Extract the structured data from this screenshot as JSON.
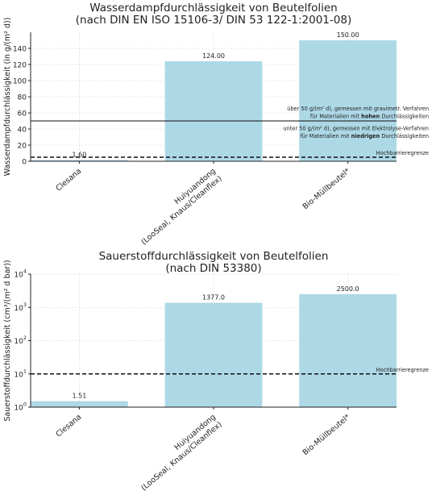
{
  "chart_data": [
    {
      "type": "bar",
      "title": [
        "Wasserdampfdurchlässigkeit von Beutelfolien",
        "(nach DIN EN ISO 15106-3/ DIN 53 122-1:2001-08)"
      ],
      "ylabel": "Wasserdampfdurchlässigkeit (in g/(m² d))",
      "xlabel": "",
      "categories": [
        "Clesana",
        "Huiyuandong\n(LooSeal, Knaus/Cleanflex)",
        "Bio-Müllbeutel*"
      ],
      "values": [
        1.6,
        124.0,
        150.0
      ],
      "value_labels": [
        "1.60",
        "124.00",
        "150.00"
      ],
      "yscale": "linear",
      "ylim": [
        0,
        160
      ],
      "yticks": [
        0,
        20,
        40,
        60,
        80,
        100,
        120,
        140
      ],
      "grid": true,
      "bar_color": "#add8e6",
      "reference_lines": [
        {
          "y": 50,
          "style": "solid",
          "label": ""
        },
        {
          "y": 5,
          "style": "dashed",
          "label": "Hochbarrieregrenze"
        }
      ],
      "annotations": [
        [
          {
            "t": "über 50 g/(m² d), gemessen mit gravimetr. Verfahren",
            "b": false
          }
        ],
        [
          {
            "t": "für Materialien mit ",
            "b": false
          },
          {
            "t": "hohen",
            "b": true
          },
          {
            "t": " Durchlässigkeiten",
            "b": false
          }
        ],
        [
          {
            "t": "unter 50 g/(m² d), gemessen mit Elektrolyse-Verfahren",
            "b": false
          }
        ],
        [
          {
            "t": "für Materialien mit ",
            "b": false
          },
          {
            "t": "niedrigen",
            "b": true
          },
          {
            "t": " Durchlässigkeiten",
            "b": false
          }
        ]
      ]
    },
    {
      "type": "bar",
      "title": [
        "Sauerstoffdurchlässigkeit von Beutelfolien",
        "(nach DIN 53380)"
      ],
      "ylabel": "Sauerstoffdurchlässigkeit (cm³/(m² d bar))",
      "xlabel": "",
      "categories": [
        "Clesana",
        "Huiyuandong\n(LooSeal, Knaus/Cleanflex)",
        "Bio-Müllbeutel*"
      ],
      "values": [
        1.51,
        1377.0,
        2500.0
      ],
      "value_labels": [
        "1.51",
        "1377.0",
        "2500.0"
      ],
      "yscale": "log",
      "ylim": [
        1,
        10000
      ],
      "yticks": [
        1,
        10,
        100,
        1000,
        10000
      ],
      "ytick_exponents": [
        "0",
        "1",
        "2",
        "3",
        "4"
      ],
      "grid": true,
      "bar_color": "#add8e6",
      "reference_lines": [
        {
          "y": 10,
          "style": "dashed",
          "label": "Hochbarrieregrenze"
        }
      ],
      "annotations": []
    }
  ]
}
